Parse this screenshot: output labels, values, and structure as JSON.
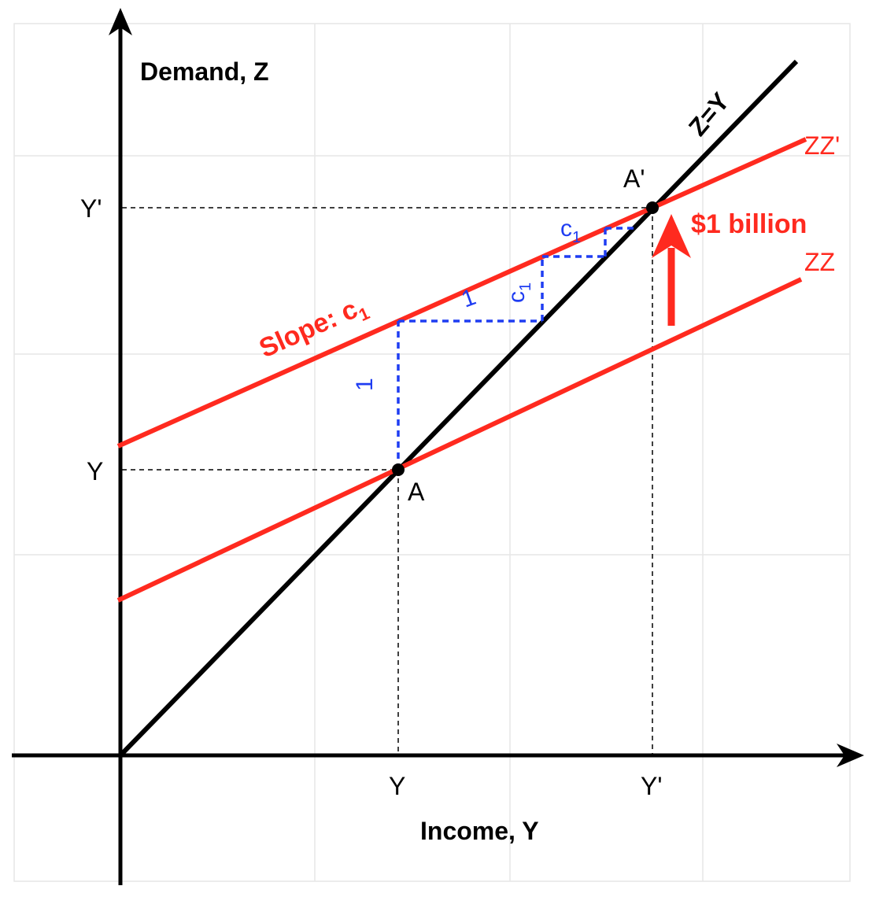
{
  "axes": {
    "y_title": "Demand, Z",
    "x_title": "Income, Y"
  },
  "ticks": {
    "x_y": "Y",
    "x_y_prime": "Y'",
    "y_y": "Y",
    "y_y_prime": "Y'"
  },
  "lines": {
    "zy_label": "Z=Y",
    "zz_label": "ZZ",
    "zz_prime_label": "ZZ'"
  },
  "points": {
    "a": "A",
    "a_prime": "A'"
  },
  "annotations": {
    "shift_label": "$1 billion",
    "slope_label": "Slope: c",
    "slope_sub": "1",
    "step_run": "1",
    "step_rise_vertical": "1",
    "c_letter": "c",
    "c_sub": "1",
    "c2_letter": "c",
    "c2_sub": "1"
  },
  "colors": {
    "curve_red": "#ff2a1f",
    "step_blue": "#1f3df2",
    "axis_black": "#000000"
  }
}
